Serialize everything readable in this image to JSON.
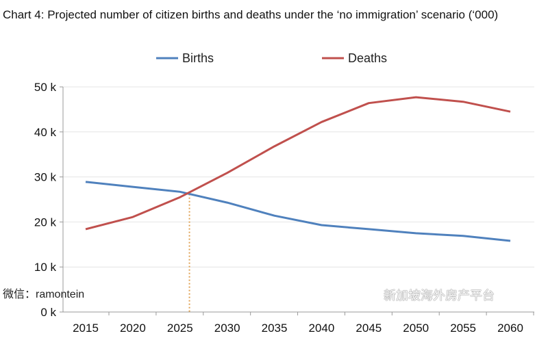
{
  "chart_data": {
    "type": "line",
    "title": "Chart 4: Projected number of citizen births and deaths under the ‘no immigration’ scenario (‘000)",
    "x": [
      2015,
      2020,
      2025,
      2030,
      2035,
      2040,
      2045,
      2050,
      2055,
      2060
    ],
    "x_tick_labels": [
      "2015",
      "2020",
      "2025",
      "2030",
      "2035",
      "2040",
      "2045",
      "2050",
      "2055",
      "2060"
    ],
    "y_tick_labels": [
      "0 k",
      "10 k",
      "20 k",
      "30 k",
      "40 k",
      "50 k"
    ],
    "ylim": [
      0,
      50
    ],
    "grid": "horizontal",
    "legend_placement": "top",
    "series": [
      {
        "name": "Births",
        "color": "#4f81bd",
        "values": [
          28.9,
          27.8,
          26.7,
          24.3,
          21.4,
          19.3,
          18.4,
          17.5,
          16.9,
          15.8
        ]
      },
      {
        "name": "Deaths",
        "color": "#c0504d",
        "values": [
          18.4,
          21.1,
          25.5,
          30.9,
          36.8,
          42.2,
          46.4,
          47.7,
          46.7,
          44.5
        ]
      }
    ],
    "annotations": [
      {
        "type": "vertical-dotted-line",
        "x": 2026,
        "color": "#e0a050"
      }
    ]
  },
  "watermarks": {
    "left": "微信：ramontein",
    "right": "新加坡海外房产平台"
  }
}
